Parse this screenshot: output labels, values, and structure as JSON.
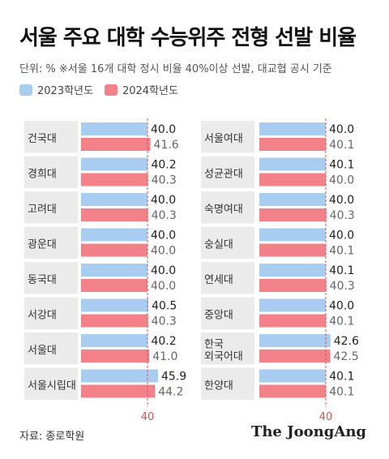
{
  "title": "서울 주요 대학 수능위주 전형 선발 비율",
  "unit_note": "단위: %   ※서울 16개 대학 정시 비율 40%이상 선발, 대교협 공시 기준",
  "legend": [
    {
      "label": "2023학년도",
      "color": "#a9cdf0"
    },
    {
      "label": "2024학년도",
      "color": "#f3818a"
    }
  ],
  "source": "자료: 종로학원",
  "brand": "The JoongAng",
  "chart_data": [
    {
      "type": "bar",
      "orientation": "horizontal",
      "categories": [
        "건국대",
        "경희대",
        "고려대",
        "광운대",
        "동국대",
        "서강대",
        "서울대",
        "서울시립대"
      ],
      "series": [
        {
          "name": "2023학년도",
          "values": [
            40.0,
            40.2,
            40.0,
            40.0,
            40.0,
            40.5,
            40.2,
            45.9
          ]
        },
        {
          "name": "2024학년도",
          "values": [
            41.6,
            40.3,
            40.3,
            40.0,
            40.0,
            40.3,
            41.0,
            44.2
          ]
        }
      ],
      "reference_line": 40,
      "reference_label": "40"
    },
    {
      "type": "bar",
      "orientation": "horizontal",
      "categories": [
        "서울여대",
        "성균관대",
        "숙명여대",
        "숭실대",
        "연세대",
        "중앙대",
        "한국\n외국어대",
        "한양대"
      ],
      "series": [
        {
          "name": "2023학년도",
          "values": [
            40.0,
            40.1,
            40.0,
            40.0,
            40.1,
            40.0,
            42.6,
            40.1
          ]
        },
        {
          "name": "2024학년도",
          "values": [
            40.1,
            40.0,
            40.3,
            40.1,
            40.3,
            40.1,
            42.5,
            40.1
          ]
        }
      ],
      "reference_line": 40,
      "reference_label": "40"
    }
  ]
}
